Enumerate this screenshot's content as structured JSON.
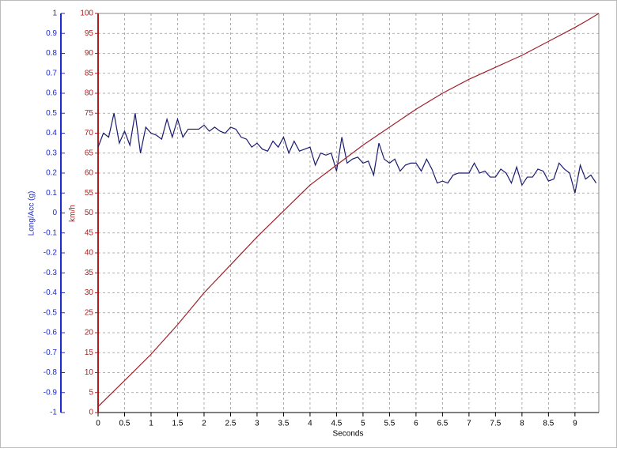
{
  "chart_data": {
    "type": "line",
    "xlabel": "Seconds",
    "ylabel": "Long/Acc (g)",
    "y2label": "km/h",
    "xlim": [
      0,
      9.45
    ],
    "xticks": [
      0,
      0.5,
      1,
      1.5,
      2,
      2.5,
      3,
      3.5,
      4,
      4.5,
      5,
      5.5,
      6,
      6.5,
      7,
      7.5,
      8,
      8.5,
      9
    ],
    "ylim": [
      -1,
      1
    ],
    "yticks": [
      -1,
      -0.9,
      -0.8,
      -0.7,
      -0.6,
      -0.5,
      -0.4,
      -0.3,
      -0.2,
      -0.1,
      0,
      0.1,
      0.2,
      0.3,
      0.4,
      0.5,
      0.6,
      0.7,
      0.8,
      0.9,
      1
    ],
    "y2lim": [
      0,
      100
    ],
    "y2ticks": [
      0,
      5,
      10,
      15,
      20,
      25,
      30,
      35,
      40,
      45,
      50,
      55,
      60,
      65,
      70,
      75,
      80,
      85,
      90,
      95,
      100
    ],
    "ycolor": "#1c2ad0",
    "y2color": "#b01c1c",
    "grid": true,
    "series": [
      {
        "color": "#1a1a6e",
        "axis": "y",
        "x": [
          0,
          0.1,
          0.2,
          0.3,
          0.4,
          0.5,
          0.6,
          0.7,
          0.8,
          0.9,
          1,
          1.1,
          1.2,
          1.3,
          1.4,
          1.5,
          1.6,
          1.7,
          1.8,
          1.9,
          2,
          2.1,
          2.2,
          2.3,
          2.4,
          2.5,
          2.6,
          2.7,
          2.8,
          2.9,
          3,
          3.1,
          3.2,
          3.3,
          3.4,
          3.5,
          3.6,
          3.7,
          3.8,
          3.9,
          4,
          4.1,
          4.2,
          4.3,
          4.4,
          4.5,
          4.6,
          4.7,
          4.8,
          4.9,
          5,
          5.1,
          5.2,
          5.3,
          5.4,
          5.5,
          5.6,
          5.7,
          5.8,
          5.9,
          6,
          6.1,
          6.2,
          6.3,
          6.4,
          6.5,
          6.6,
          6.7,
          6.8,
          6.9,
          7,
          7.1,
          7.2,
          7.3,
          7.4,
          7.5,
          7.6,
          7.7,
          7.8,
          7.9,
          8,
          8.1,
          8.2,
          8.3,
          8.4,
          8.5,
          8.6,
          8.7,
          8.8,
          8.9,
          9,
          9.1,
          9.2,
          9.3,
          9.4
        ],
        "values": [
          0.33,
          0.4,
          0.38,
          0.5,
          0.35,
          0.41,
          0.34,
          0.5,
          0.3,
          0.43,
          0.4,
          0.39,
          0.37,
          0.47,
          0.38,
          0.47,
          0.38,
          0.42,
          0.42,
          0.42,
          0.44,
          0.41,
          0.43,
          0.41,
          0.4,
          0.43,
          0.42,
          0.38,
          0.37,
          0.33,
          0.35,
          0.32,
          0.31,
          0.36,
          0.33,
          0.38,
          0.3,
          0.36,
          0.31,
          0.32,
          0.33,
          0.24,
          0.3,
          0.29,
          0.3,
          0.21,
          0.38,
          0.25,
          0.27,
          0.28,
          0.25,
          0.26,
          0.19,
          0.35,
          0.27,
          0.25,
          0.27,
          0.21,
          0.24,
          0.25,
          0.25,
          0.21,
          0.27,
          0.22,
          0.15,
          0.16,
          0.15,
          0.19,
          0.2,
          0.2,
          0.2,
          0.25,
          0.2,
          0.21,
          0.18,
          0.18,
          0.22,
          0.2,
          0.15,
          0.23,
          0.14,
          0.18,
          0.18,
          0.22,
          0.21,
          0.16,
          0.17,
          0.25,
          0.22,
          0.2,
          0.1,
          0.24,
          0.17,
          0.19,
          0.15
        ]
      },
      {
        "color": "#a0202a",
        "axis": "y2",
        "x": [
          0,
          0.5,
          1,
          1.5,
          2,
          2.5,
          3,
          3.5,
          4,
          4.5,
          5,
          5.5,
          6,
          6.5,
          7,
          7.5,
          8,
          8.5,
          9,
          9.2,
          9.45
        ],
        "values": [
          1.5,
          8,
          14.6,
          22,
          30,
          37,
          44,
          50.5,
          57,
          62,
          67,
          71.5,
          76,
          80,
          83.5,
          86.5,
          89.5,
          93,
          96.5,
          98,
          100
        ]
      }
    ]
  }
}
